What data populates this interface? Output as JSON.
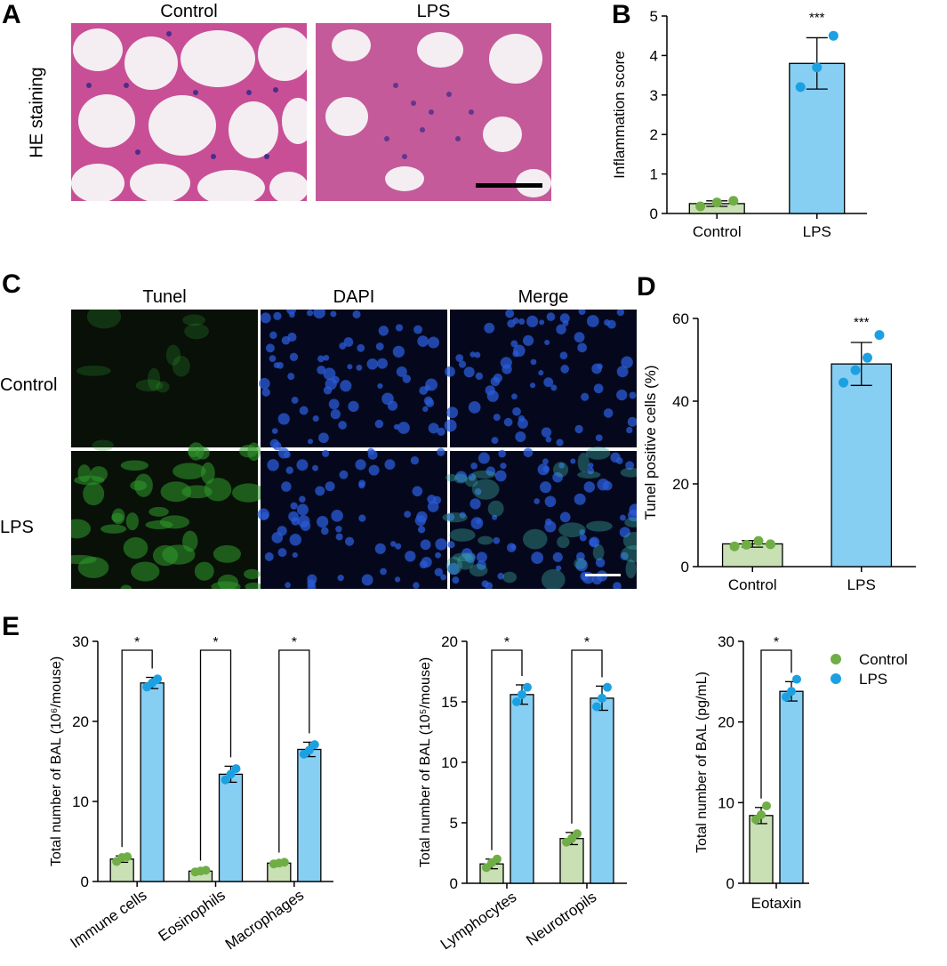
{
  "panels": {
    "A": {
      "letter": "A",
      "col_titles": [
        "Control",
        "LPS"
      ],
      "row_label": "HE staining"
    },
    "B": {
      "letter": "B"
    },
    "C": {
      "letter": "C",
      "col_titles": [
        "Tunel",
        "DAPI",
        "Merge"
      ],
      "row_labels": [
        "Control",
        "LPS"
      ]
    },
    "D": {
      "letter": "D"
    },
    "E": {
      "letter": "E"
    }
  },
  "colors": {
    "control_fill": "#c8e0b4",
    "control_dot": "#70ad47",
    "lps_fill": "#87cef3",
    "lps_dot": "#1ba1e2",
    "he_bg": "#f4eef2",
    "he_tissue": "#c84f96",
    "he_nuclei": "#4a2e8a",
    "fluor_green": "#2f9a2b",
    "fluor_blue": "#2a5bd8"
  },
  "chart_data": [
    {
      "id": "B",
      "type": "bar",
      "categories": [
        "Control",
        "LPS"
      ],
      "values": [
        0.25,
        3.8
      ],
      "errors": [
        0.07,
        0.65
      ],
      "points": [
        [
          0.18,
          0.28,
          0.32
        ],
        [
          3.2,
          3.7,
          4.5
        ]
      ],
      "ylabel": "Inflammation score",
      "ylim": [
        0,
        5
      ],
      "yticks": [
        "0",
        "1",
        "2",
        "3",
        "4",
        "5"
      ],
      "significance": [
        {
          "category": 1,
          "label": "***"
        }
      ]
    },
    {
      "id": "D",
      "type": "bar",
      "categories": [
        "Control",
        "LPS"
      ],
      "values": [
        5.5,
        49
      ],
      "errors": [
        0.8,
        5.2
      ],
      "points": [
        [
          4.9,
          5.3,
          6.2,
          5.4
        ],
        [
          44.5,
          47.5,
          50.5,
          56
        ]
      ],
      "ylabel": "Tunel positive cells (%)",
      "ylim": [
        0,
        60
      ],
      "yticks": [
        "0",
        "20",
        "40",
        "60"
      ],
      "significance": [
        {
          "category": 1,
          "label": "***"
        }
      ]
    },
    {
      "id": "E1",
      "type": "bar",
      "categories": [
        "Immune cells",
        "Eosinophils",
        "Macrophages"
      ],
      "series": [
        {
          "name": "Control",
          "values": [
            2.8,
            1.3,
            2.3
          ],
          "errors": [
            0.4,
            0.2,
            0.2
          ],
          "points": [
            [
              2.5,
              3.0,
              3.1
            ],
            [
              1.2,
              1.3,
              1.4
            ],
            [
              2.2,
              2.3,
              2.4
            ]
          ]
        },
        {
          "name": "LPS",
          "values": [
            24.8,
            13.4,
            16.5
          ],
          "errors": [
            0.7,
            1.0,
            0.9
          ],
          "points": [
            [
              24.3,
              24.8,
              25.3
            ],
            [
              12.7,
              13.4,
              14.1
            ],
            [
              15.9,
              16.4,
              17.1
            ]
          ]
        }
      ],
      "ylabel": "Total number of BAL (10⁶/mouse)",
      "ylim": [
        0,
        30
      ],
      "yticks": [
        "0",
        "10",
        "20",
        "30"
      ],
      "significance": [
        "*",
        "*",
        "*"
      ]
    },
    {
      "id": "E2",
      "type": "bar",
      "categories": [
        "Lymphocytes",
        "Neurotropils"
      ],
      "series": [
        {
          "name": "Control",
          "values": [
            1.6,
            3.7
          ],
          "errors": [
            0.4,
            0.5
          ],
          "points": [
            [
              1.3,
              1.7,
              2.0
            ],
            [
              3.4,
              3.7,
              4.1
            ]
          ]
        },
        {
          "name": "LPS",
          "values": [
            15.6,
            15.3
          ],
          "errors": [
            0.8,
            1.0
          ],
          "points": [
            [
              15.0,
              15.6,
              16.2
            ],
            [
              14.6,
              15.3,
              16.2
            ]
          ]
        }
      ],
      "ylabel": "Total number of BAL (10⁵/mouse)",
      "ylim": [
        0,
        20
      ],
      "yticks": [
        "0",
        "5",
        "10",
        "15",
        "20"
      ],
      "significance": [
        "*",
        "*"
      ]
    },
    {
      "id": "E3",
      "type": "bar",
      "categories": [
        "Eotaxin"
      ],
      "series": [
        {
          "name": "Control",
          "values": [
            8.4
          ],
          "errors": [
            1.0
          ],
          "points": [
            [
              7.9,
              8.5,
              9.6
            ]
          ]
        },
        {
          "name": "LPS",
          "values": [
            23.8
          ],
          "errors": [
            1.2
          ],
          "points": [
            [
              23.1,
              23.8,
              25.3
            ]
          ]
        }
      ],
      "ylabel": "Total number of BAL (pg/mL)",
      "ylim": [
        0,
        30
      ],
      "yticks": [
        "0",
        "10",
        "20",
        "30"
      ],
      "significance": [
        "*"
      ],
      "legend": {
        "placement": "top-right",
        "entries": [
          "Control",
          "LPS"
        ]
      }
    }
  ]
}
